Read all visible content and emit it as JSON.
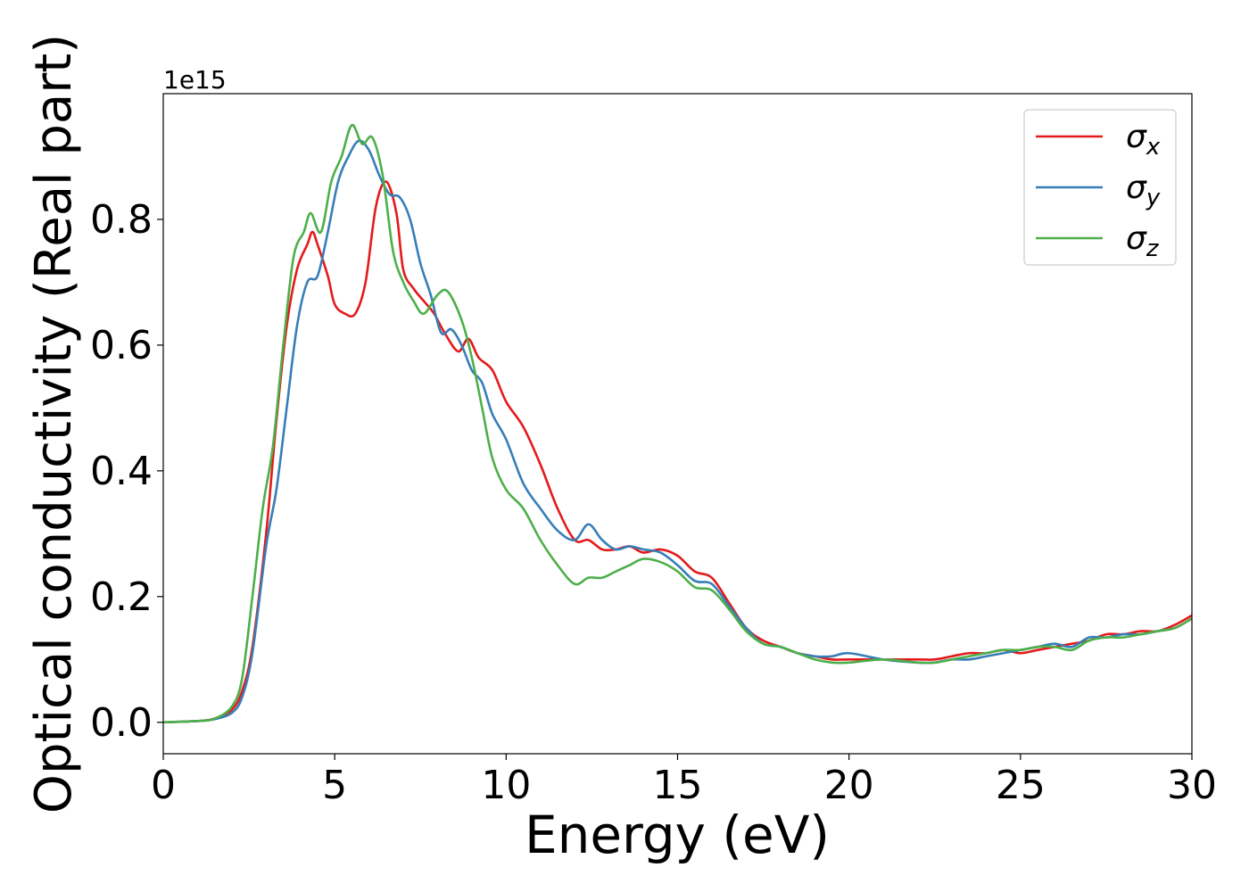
{
  "chart_data": {
    "type": "line",
    "title": "",
    "xlabel": "Energy (eV)",
    "ylabel": "Optical conductivity (Real part)",
    "y_offset_label": "1e15",
    "xlim": [
      0,
      30
    ],
    "ylim": [
      -0.05,
      1.0
    ],
    "xticks": [
      0,
      5,
      10,
      15,
      20,
      25,
      30
    ],
    "xtick_labels": [
      "0",
      "5",
      "10",
      "15",
      "20",
      "25",
      "30"
    ],
    "yticks": [
      0.0,
      0.2,
      0.4,
      0.6,
      0.8
    ],
    "ytick_labels": [
      "0.0",
      "0.2",
      "0.4",
      "0.6",
      "0.8"
    ],
    "grid": false,
    "legend_position": "top-right",
    "series": [
      {
        "name": "σx",
        "legend_base": "σ",
        "legend_sub": "x",
        "color": "#e41a1c",
        "points": [
          [
            0,
            0
          ],
          [
            1,
            0.002
          ],
          [
            1.5,
            0.006
          ],
          [
            2,
            0.02
          ],
          [
            2.3,
            0.05
          ],
          [
            2.6,
            0.12
          ],
          [
            3,
            0.3
          ],
          [
            3.3,
            0.48
          ],
          [
            3.6,
            0.63
          ],
          [
            3.9,
            0.72
          ],
          [
            4.2,
            0.76
          ],
          [
            4.35,
            0.78
          ],
          [
            4.5,
            0.76
          ],
          [
            4.8,
            0.71
          ],
          [
            5.0,
            0.665
          ],
          [
            5.3,
            0.65
          ],
          [
            5.6,
            0.65
          ],
          [
            5.9,
            0.7
          ],
          [
            6.2,
            0.82
          ],
          [
            6.5,
            0.86
          ],
          [
            6.8,
            0.81
          ],
          [
            7.0,
            0.72
          ],
          [
            7.3,
            0.69
          ],
          [
            7.6,
            0.67
          ],
          [
            7.9,
            0.65
          ],
          [
            8.2,
            0.62
          ],
          [
            8.6,
            0.59
          ],
          [
            8.9,
            0.61
          ],
          [
            9.2,
            0.58
          ],
          [
            9.6,
            0.56
          ],
          [
            10.0,
            0.51
          ],
          [
            10.5,
            0.47
          ],
          [
            11.0,
            0.41
          ],
          [
            11.5,
            0.34
          ],
          [
            12.0,
            0.29
          ],
          [
            12.4,
            0.29
          ],
          [
            12.8,
            0.275
          ],
          [
            13.2,
            0.275
          ],
          [
            13.6,
            0.28
          ],
          [
            14.0,
            0.27
          ],
          [
            14.5,
            0.275
          ],
          [
            15.0,
            0.265
          ],
          [
            15.5,
            0.24
          ],
          [
            16.0,
            0.23
          ],
          [
            16.5,
            0.19
          ],
          [
            17.0,
            0.15
          ],
          [
            17.5,
            0.13
          ],
          [
            18.0,
            0.12
          ],
          [
            18.5,
            0.11
          ],
          [
            19.0,
            0.105
          ],
          [
            19.5,
            0.1
          ],
          [
            20.0,
            0.1
          ],
          [
            21.0,
            0.1
          ],
          [
            22.0,
            0.1
          ],
          [
            22.5,
            0.1
          ],
          [
            23.0,
            0.105
          ],
          [
            23.5,
            0.11
          ],
          [
            24.0,
            0.11
          ],
          [
            24.5,
            0.115
          ],
          [
            25.0,
            0.11
          ],
          [
            25.5,
            0.115
          ],
          [
            26.0,
            0.12
          ],
          [
            26.5,
            0.125
          ],
          [
            27.0,
            0.13
          ],
          [
            27.5,
            0.14
          ],
          [
            28.0,
            0.14
          ],
          [
            28.5,
            0.145
          ],
          [
            29.0,
            0.145
          ],
          [
            29.5,
            0.155
          ],
          [
            30.0,
            0.17
          ]
        ]
      },
      {
        "name": "σy",
        "legend_base": "σ",
        "legend_sub": "y",
        "color": "#377eb8",
        "points": [
          [
            0,
            0
          ],
          [
            1,
            0.002
          ],
          [
            1.5,
            0.005
          ],
          [
            2,
            0.015
          ],
          [
            2.3,
            0.04
          ],
          [
            2.6,
            0.11
          ],
          [
            3,
            0.28
          ],
          [
            3.3,
            0.37
          ],
          [
            3.6,
            0.5
          ],
          [
            3.9,
            0.63
          ],
          [
            4.2,
            0.7
          ],
          [
            4.5,
            0.71
          ],
          [
            4.8,
            0.78
          ],
          [
            5.1,
            0.86
          ],
          [
            5.4,
            0.9
          ],
          [
            5.7,
            0.925
          ],
          [
            6.0,
            0.91
          ],
          [
            6.3,
            0.87
          ],
          [
            6.6,
            0.84
          ],
          [
            6.9,
            0.835
          ],
          [
            7.2,
            0.8
          ],
          [
            7.5,
            0.73
          ],
          [
            7.8,
            0.68
          ],
          [
            8.1,
            0.62
          ],
          [
            8.4,
            0.625
          ],
          [
            8.7,
            0.6
          ],
          [
            9.0,
            0.56
          ],
          [
            9.3,
            0.54
          ],
          [
            9.6,
            0.49
          ],
          [
            10.0,
            0.45
          ],
          [
            10.5,
            0.38
          ],
          [
            11.0,
            0.34
          ],
          [
            11.5,
            0.305
          ],
          [
            12.0,
            0.29
          ],
          [
            12.4,
            0.315
          ],
          [
            12.8,
            0.29
          ],
          [
            13.2,
            0.275
          ],
          [
            13.6,
            0.28
          ],
          [
            14.0,
            0.275
          ],
          [
            14.5,
            0.27
          ],
          [
            15.0,
            0.25
          ],
          [
            15.5,
            0.225
          ],
          [
            16.0,
            0.22
          ],
          [
            16.5,
            0.185
          ],
          [
            17.0,
            0.15
          ],
          [
            17.5,
            0.125
          ],
          [
            18.0,
            0.12
          ],
          [
            18.5,
            0.11
          ],
          [
            19.0,
            0.105
          ],
          [
            19.5,
            0.105
          ],
          [
            20.0,
            0.11
          ],
          [
            21.0,
            0.1
          ],
          [
            22.0,
            0.095
          ],
          [
            22.5,
            0.095
          ],
          [
            23.0,
            0.1
          ],
          [
            23.5,
            0.1
          ],
          [
            24.0,
            0.105
          ],
          [
            24.5,
            0.11
          ],
          [
            25.0,
            0.115
          ],
          [
            25.5,
            0.12
          ],
          [
            26.0,
            0.125
          ],
          [
            26.5,
            0.12
          ],
          [
            27.0,
            0.135
          ],
          [
            27.5,
            0.135
          ],
          [
            28.0,
            0.14
          ],
          [
            28.5,
            0.14
          ],
          [
            29.0,
            0.145
          ],
          [
            29.5,
            0.15
          ],
          [
            30.0,
            0.165
          ]
        ]
      },
      {
        "name": "σz",
        "legend_base": "σ",
        "legend_sub": "z",
        "color": "#4daf4a",
        "points": [
          [
            0,
            0
          ],
          [
            1,
            0.002
          ],
          [
            1.5,
            0.006
          ],
          [
            2,
            0.025
          ],
          [
            2.3,
            0.07
          ],
          [
            2.6,
            0.2
          ],
          [
            2.9,
            0.34
          ],
          [
            3.2,
            0.44
          ],
          [
            3.5,
            0.6
          ],
          [
            3.8,
            0.74
          ],
          [
            4.1,
            0.78
          ],
          [
            4.3,
            0.81
          ],
          [
            4.6,
            0.78
          ],
          [
            4.9,
            0.86
          ],
          [
            5.2,
            0.9
          ],
          [
            5.5,
            0.95
          ],
          [
            5.8,
            0.92
          ],
          [
            6.1,
            0.93
          ],
          [
            6.4,
            0.87
          ],
          [
            6.7,
            0.75
          ],
          [
            7.0,
            0.7
          ],
          [
            7.3,
            0.67
          ],
          [
            7.6,
            0.65
          ],
          [
            8.0,
            0.68
          ],
          [
            8.3,
            0.685
          ],
          [
            8.7,
            0.64
          ],
          [
            9.0,
            0.58
          ],
          [
            9.3,
            0.5
          ],
          [
            9.6,
            0.42
          ],
          [
            10.0,
            0.37
          ],
          [
            10.5,
            0.34
          ],
          [
            11.0,
            0.29
          ],
          [
            11.5,
            0.25
          ],
          [
            12.0,
            0.22
          ],
          [
            12.4,
            0.23
          ],
          [
            12.8,
            0.23
          ],
          [
            13.2,
            0.24
          ],
          [
            13.6,
            0.25
          ],
          [
            14.0,
            0.26
          ],
          [
            14.5,
            0.255
          ],
          [
            15.0,
            0.24
          ],
          [
            15.5,
            0.215
          ],
          [
            16.0,
            0.21
          ],
          [
            16.5,
            0.18
          ],
          [
            17.0,
            0.145
          ],
          [
            17.5,
            0.125
          ],
          [
            18.0,
            0.12
          ],
          [
            18.5,
            0.11
          ],
          [
            19.0,
            0.1
          ],
          [
            19.5,
            0.095
          ],
          [
            20.0,
            0.095
          ],
          [
            21.0,
            0.1
          ],
          [
            22.0,
            0.095
          ],
          [
            22.5,
            0.095
          ],
          [
            23.0,
            0.1
          ],
          [
            23.5,
            0.105
          ],
          [
            24.0,
            0.11
          ],
          [
            24.5,
            0.115
          ],
          [
            25.0,
            0.115
          ],
          [
            25.5,
            0.12
          ],
          [
            26.0,
            0.12
          ],
          [
            26.5,
            0.115
          ],
          [
            27.0,
            0.13
          ],
          [
            27.5,
            0.135
          ],
          [
            28.0,
            0.135
          ],
          [
            28.5,
            0.14
          ],
          [
            29.0,
            0.145
          ],
          [
            29.5,
            0.15
          ],
          [
            30.0,
            0.165
          ]
        ]
      }
    ]
  }
}
